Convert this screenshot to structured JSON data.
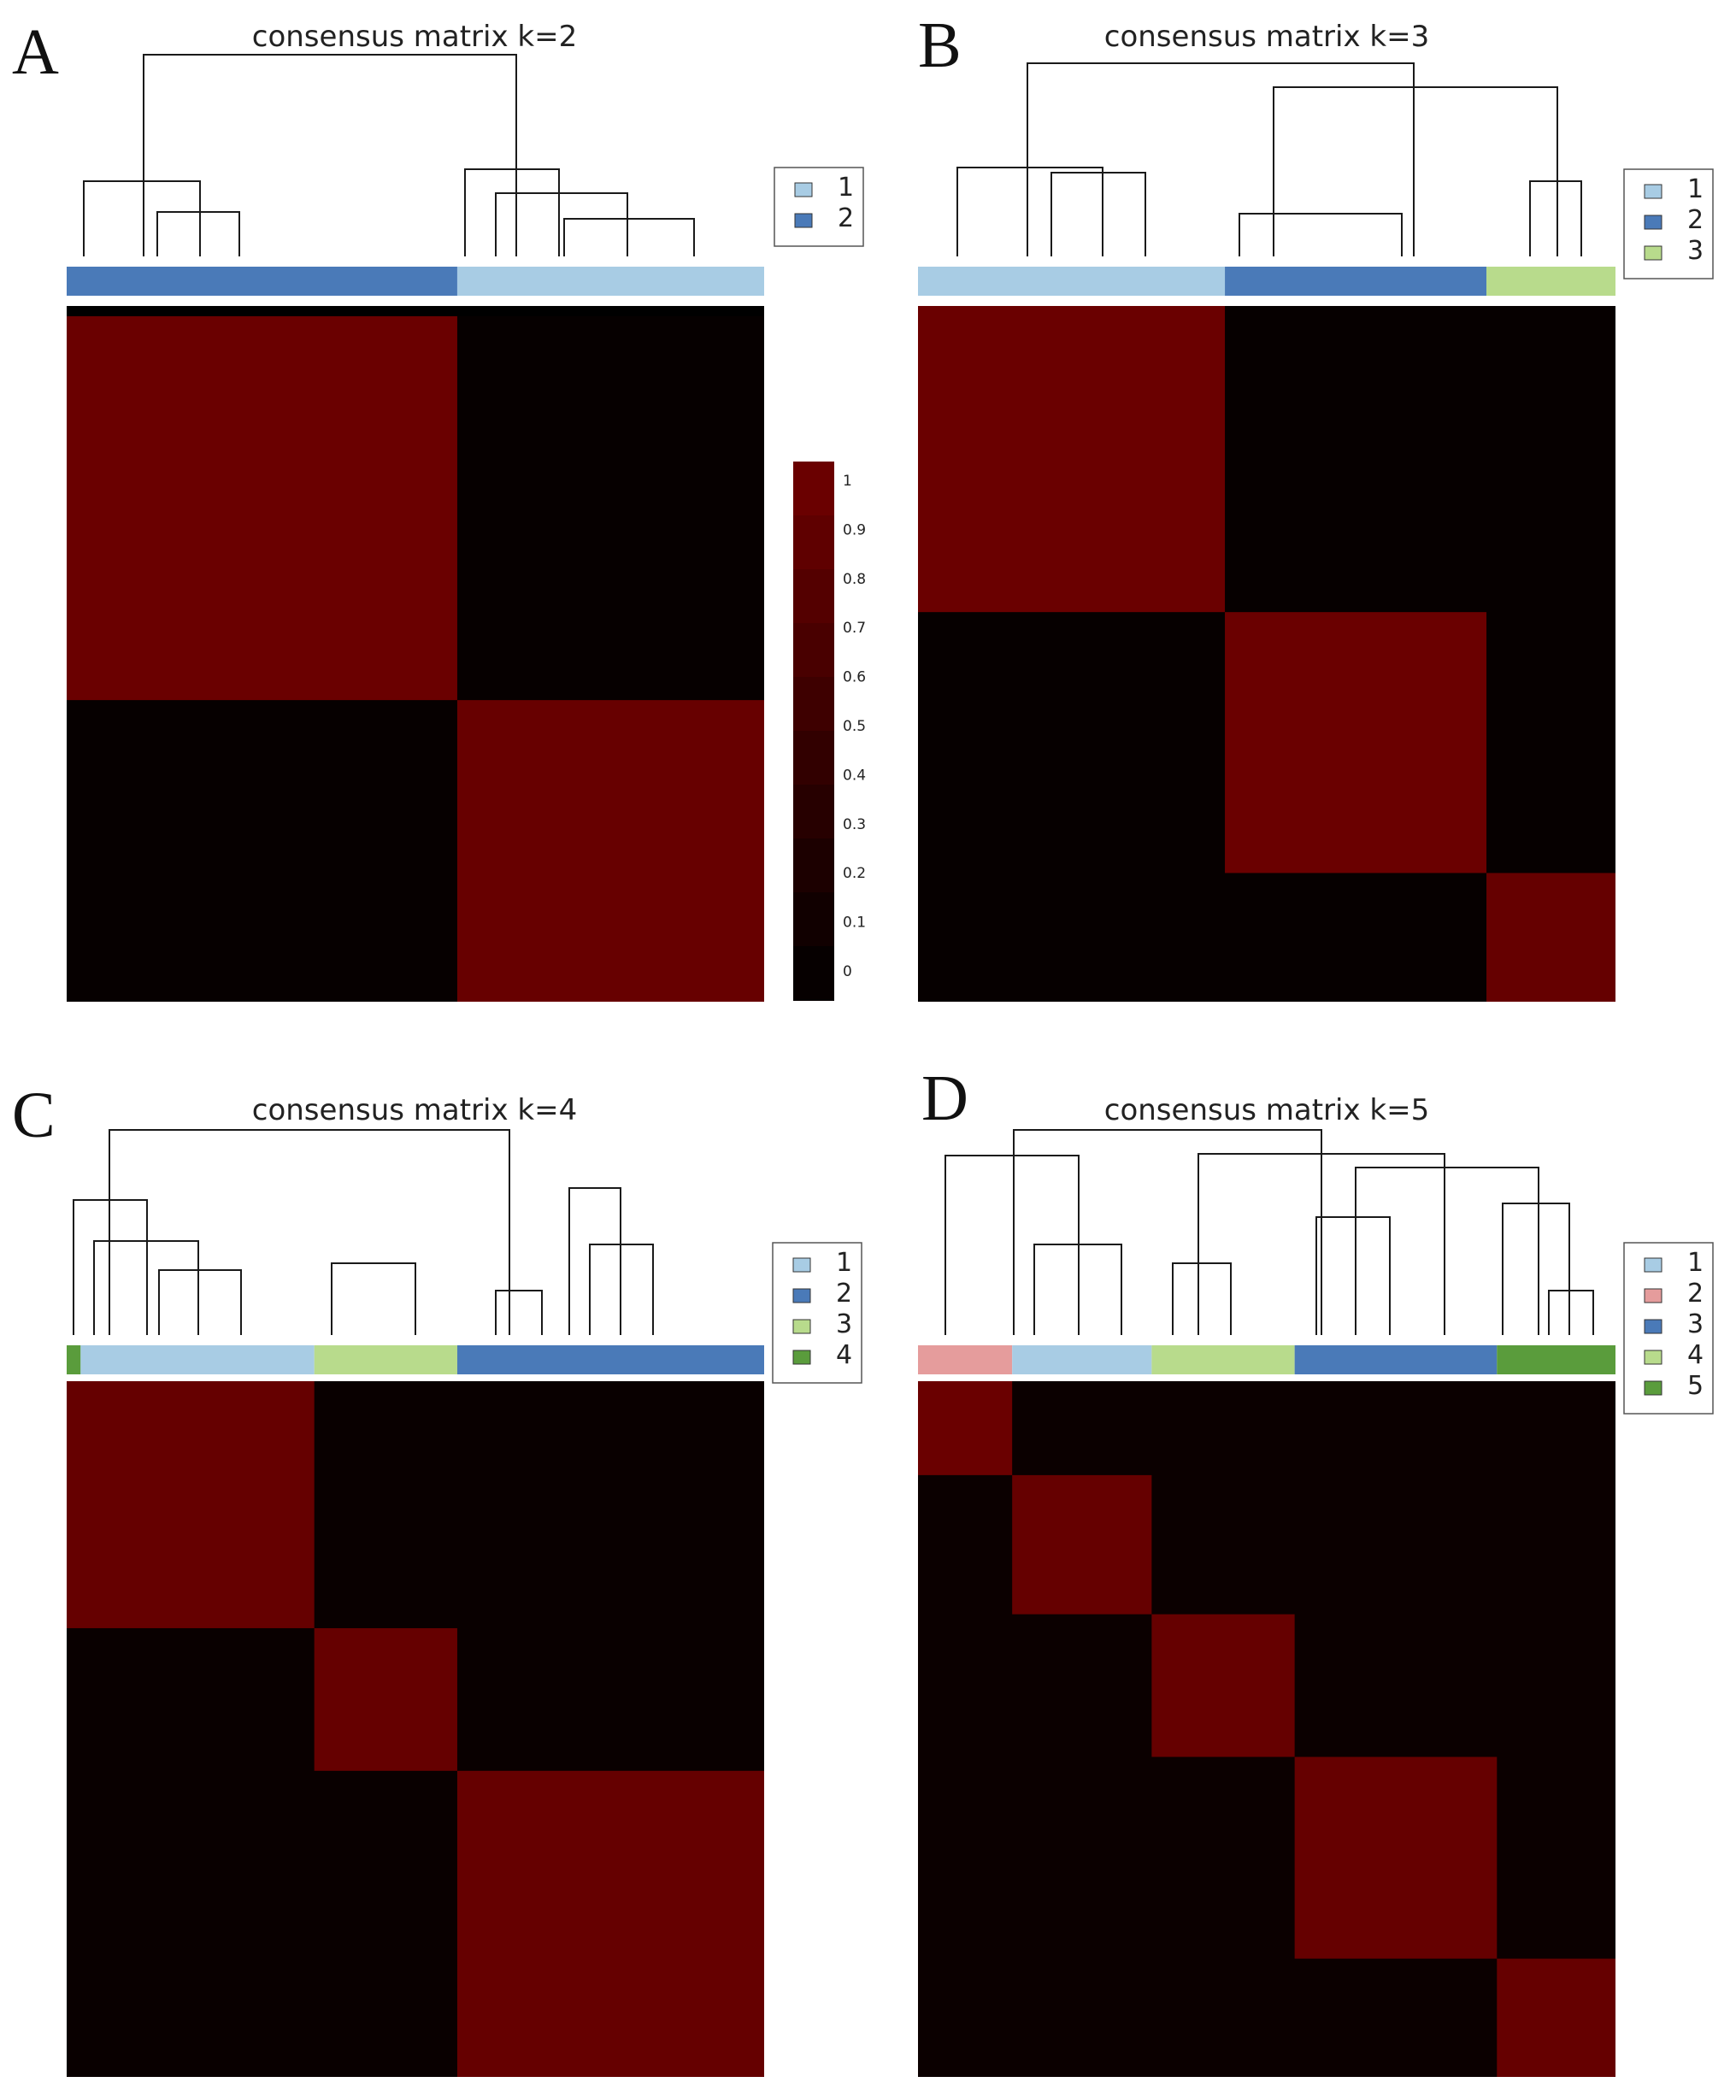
{
  "colors": {
    "light_blue": "#a8cce4",
    "dark_blue": "#4a7ab8",
    "pink": "#e59c9c",
    "light_green": "#b8db8c",
    "dark_green": "#5a9c3c",
    "heat_high": "#700000",
    "heat_low": "#000000"
  },
  "colorbar": {
    "ticks": [
      "1",
      "0.9",
      "0.8",
      "0.7",
      "0.6",
      "0.5",
      "0.4",
      "0.3",
      "0.2",
      "0.1",
      "0"
    ]
  },
  "chart_data": [
    {
      "type": "heatmap",
      "panel": "A",
      "title": "consensus matrix k=2",
      "value_range": [
        0,
        1
      ],
      "clusters": [
        {
          "label": "2",
          "color": "#4a7ab8",
          "fraction": 0.56
        },
        {
          "label": "1",
          "color": "#a8cce4",
          "fraction": 0.44
        }
      ],
      "legend": [
        {
          "label": "1",
          "color": "#a8cce4"
        },
        {
          "label": "2",
          "color": "#4a7ab8"
        }
      ],
      "blocks": [
        {
          "start": 0.0,
          "end": 0.56,
          "value": 0.95
        },
        {
          "start": 0.56,
          "end": 1.0,
          "value": 0.92
        }
      ],
      "off_block_value": 0.05
    },
    {
      "type": "heatmap",
      "panel": "B",
      "title": "consensus matrix k=3",
      "value_range": [
        0,
        1
      ],
      "clusters": [
        {
          "label": "1",
          "color": "#a8cce4",
          "fraction": 0.44
        },
        {
          "label": "2",
          "color": "#4a7ab8",
          "fraction": 0.375
        },
        {
          "label": "3",
          "color": "#b8db8c",
          "fraction": 0.185
        }
      ],
      "legend": [
        {
          "label": "1",
          "color": "#a8cce4"
        },
        {
          "label": "2",
          "color": "#4a7ab8"
        },
        {
          "label": "3",
          "color": "#b8db8c"
        }
      ],
      "blocks": [
        {
          "start": 0.0,
          "end": 0.44,
          "value": 0.95
        },
        {
          "start": 0.44,
          "end": 0.815,
          "value": 0.95
        },
        {
          "start": 0.815,
          "end": 1.0,
          "value": 0.9
        }
      ],
      "off_block_value": 0.05
    },
    {
      "type": "heatmap",
      "panel": "C",
      "title": "consensus matrix k=4",
      "value_range": [
        0,
        1
      ],
      "clusters": [
        {
          "label": "4",
          "color": "#5a9c3c",
          "fraction": 0.02
        },
        {
          "label": "1",
          "color": "#a8cce4",
          "fraction": 0.335
        },
        {
          "label": "3",
          "color": "#b8db8c",
          "fraction": 0.205
        },
        {
          "label": "2",
          "color": "#4a7ab8",
          "fraction": 0.44
        }
      ],
      "legend": [
        {
          "label": "1",
          "color": "#a8cce4"
        },
        {
          "label": "2",
          "color": "#4a7ab8"
        },
        {
          "label": "3",
          "color": "#b8db8c"
        },
        {
          "label": "4",
          "color": "#5a9c3c"
        }
      ],
      "blocks": [
        {
          "start": 0.0,
          "end": 0.355,
          "value": 0.9
        },
        {
          "start": 0.355,
          "end": 0.56,
          "value": 0.9
        },
        {
          "start": 0.56,
          "end": 1.0,
          "value": 0.9
        }
      ],
      "off_block_value": 0.08
    },
    {
      "type": "heatmap",
      "panel": "D",
      "title": "consensus matrix k=5",
      "value_range": [
        0,
        1
      ],
      "clusters": [
        {
          "label": "2",
          "color": "#e59c9c",
          "fraction": 0.135
        },
        {
          "label": "1",
          "color": "#a8cce4",
          "fraction": 0.2
        },
        {
          "label": "4",
          "color": "#b8db8c",
          "fraction": 0.205
        },
        {
          "label": "3",
          "color": "#4a7ab8",
          "fraction": 0.29
        },
        {
          "label": "5",
          "color": "#5a9c3c",
          "fraction": 0.17
        }
      ],
      "legend": [
        {
          "label": "1",
          "color": "#a8cce4"
        },
        {
          "label": "2",
          "color": "#e59c9c"
        },
        {
          "label": "3",
          "color": "#4a7ab8"
        },
        {
          "label": "4",
          "color": "#b8db8c"
        },
        {
          "label": "5",
          "color": "#5a9c3c"
        }
      ],
      "blocks": [
        {
          "start": 0.0,
          "end": 0.135,
          "value": 0.95
        },
        {
          "start": 0.135,
          "end": 0.335,
          "value": 0.9
        },
        {
          "start": 0.335,
          "end": 0.54,
          "value": 0.9
        },
        {
          "start": 0.54,
          "end": 0.83,
          "value": 0.9
        },
        {
          "start": 0.83,
          "end": 1.0,
          "value": 0.9
        }
      ],
      "off_block_value": 0.1
    }
  ]
}
